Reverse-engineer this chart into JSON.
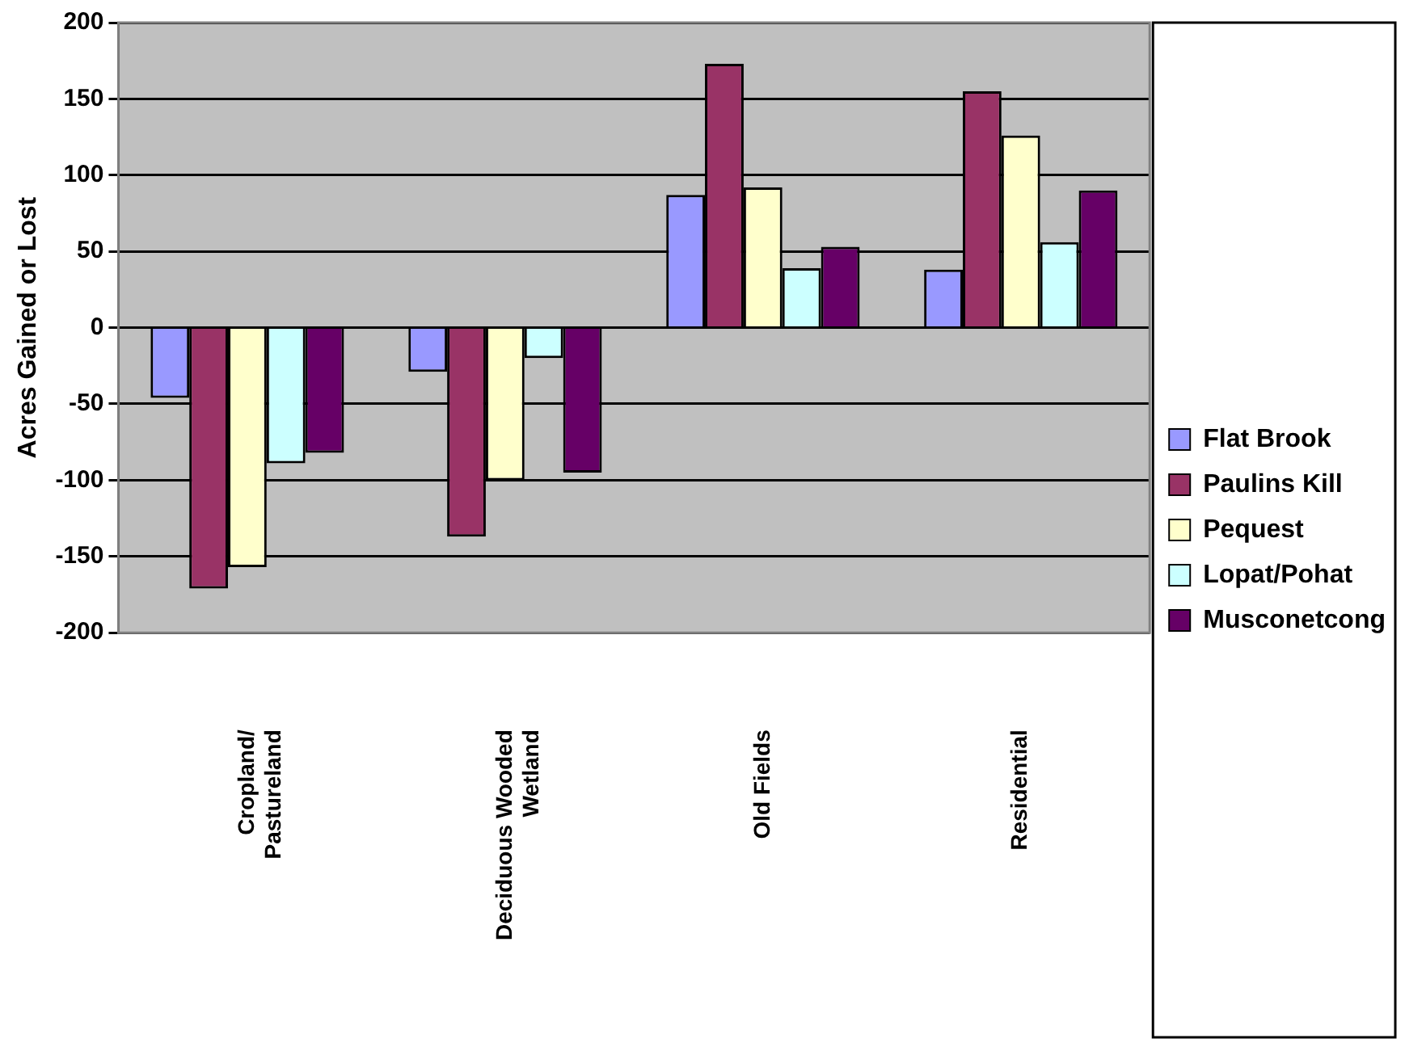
{
  "chart_data": {
    "type": "bar",
    "ylabel": "Acres Gained or Lost",
    "categories": [
      "Cropland/ Pastureland",
      "Deciduous Wooded Wetland",
      "Old Fields",
      "Residential"
    ],
    "series": [
      {
        "name": "Flat Brook",
        "color": "#9999ff",
        "values": [
          -46,
          -29,
          87,
          38
        ]
      },
      {
        "name": "Paulins Kill",
        "color": "#993366",
        "values": [
          -171,
          -137,
          173,
          155
        ]
      },
      {
        "name": "Pequest",
        "color": "#ffffcc",
        "values": [
          -157,
          -100,
          92,
          126
        ]
      },
      {
        "name": "Lopat/Pohat",
        "color": "#ccffff",
        "values": [
          -89,
          -20,
          39,
          56
        ]
      },
      {
        "name": "Musconetcong",
        "color": "#660066",
        "values": [
          -82,
          -95,
          53,
          90
        ]
      }
    ],
    "ylim": [
      -200,
      200
    ],
    "yticks": [
      -200,
      -150,
      -100,
      -50,
      0,
      50,
      100,
      150,
      200
    ],
    "grid": "y",
    "legend": "right"
  }
}
